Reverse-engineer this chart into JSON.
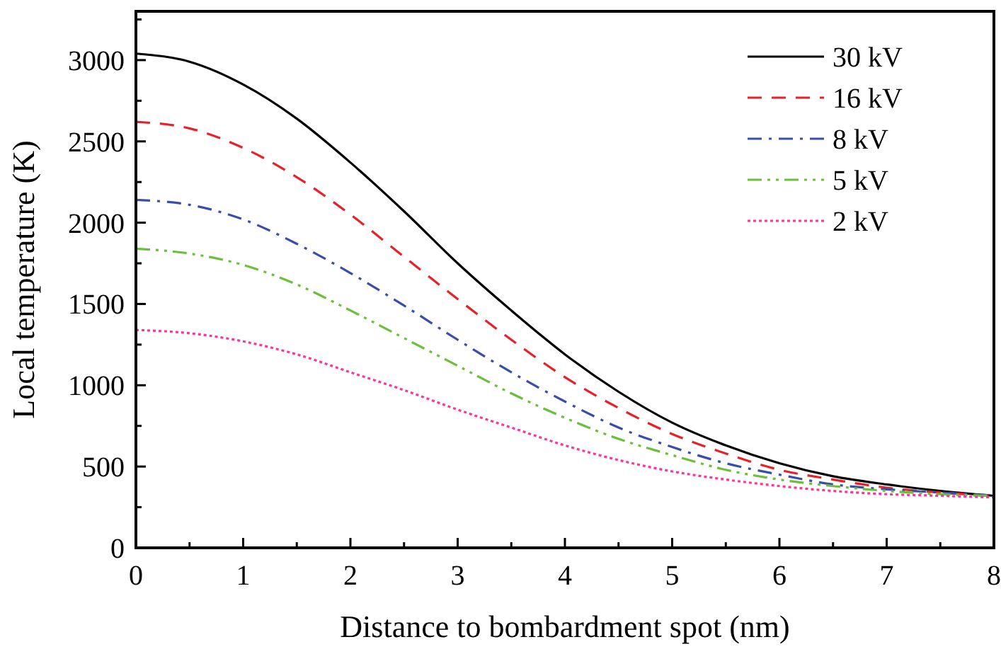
{
  "chart_data": {
    "type": "line",
    "xlabel": "Distance to bombardment spot (nm)",
    "ylabel": "Local temperature (K)",
    "x": [
      0,
      0.5,
      1,
      1.5,
      2,
      2.5,
      3,
      3.5,
      4,
      4.5,
      5,
      5.5,
      6,
      6.5,
      7,
      7.5,
      8
    ],
    "xlim": [
      0,
      8
    ],
    "xticks": [
      0,
      {
        "value": 0.5,
        "label": null
      },
      1,
      {
        "value": 1.5,
        "label": null
      },
      2,
      {
        "value": 2.5,
        "label": null
      },
      3,
      {
        "value": 3.5,
        "label": null
      },
      4,
      {
        "value": 4.5,
        "label": null
      },
      5,
      {
        "value": 5.5,
        "label": null
      },
      6,
      {
        "value": 6.5,
        "label": null
      },
      7,
      {
        "value": 7.5,
        "label": null
      },
      8
    ],
    "ylim": [
      0,
      3300
    ],
    "yticks": [
      0,
      {
        "value": 250,
        "label": null
      },
      500,
      {
        "value": 750,
        "label": null
      },
      1000,
      {
        "value": 1250,
        "label": null
      },
      1500,
      {
        "value": 1750,
        "label": null
      },
      2000,
      {
        "value": 2250,
        "label": null
      },
      2500,
      {
        "value": 2750,
        "label": null
      },
      3000,
      {
        "value": 3250,
        "label": null
      }
    ],
    "grid": false,
    "legend": "top right",
    "marker": "none",
    "series": [
      {
        "name": "30 kV",
        "color": "#000000",
        "line_style": "solid",
        "values": [
          3040,
          2990,
          2850,
          2640,
          2370,
          2070,
          1750,
          1460,
          1190,
          960,
          770,
          630,
          520,
          440,
          390,
          350,
          320
        ]
      },
      {
        "name": "16 kV",
        "color": "#e8202a",
        "line_style": "dashed",
        "values": [
          2620,
          2580,
          2460,
          2280,
          2050,
          1790,
          1530,
          1280,
          1050,
          860,
          700,
          580,
          480,
          420,
          370,
          340,
          320
        ]
      },
      {
        "name": "8 kV",
        "color": "#3a4ea8",
        "line_style": "dashdot",
        "values": [
          2140,
          2110,
          2020,
          1870,
          1690,
          1490,
          1280,
          1080,
          900,
          740,
          620,
          520,
          450,
          390,
          360,
          340,
          320
        ]
      },
      {
        "name": "5 kV",
        "color": "#6cbf3c",
        "line_style": "dashdotdot",
        "values": [
          1840,
          1810,
          1740,
          1620,
          1460,
          1290,
          1120,
          950,
          800,
          670,
          570,
          480,
          420,
          380,
          350,
          330,
          320
        ]
      },
      {
        "name": "2 kV",
        "color": "#ff3399",
        "line_style": "dotted",
        "values": [
          1340,
          1320,
          1270,
          1190,
          1080,
          970,
          850,
          740,
          630,
          540,
          470,
          420,
          380,
          350,
          330,
          320,
          310
        ]
      }
    ]
  }
}
